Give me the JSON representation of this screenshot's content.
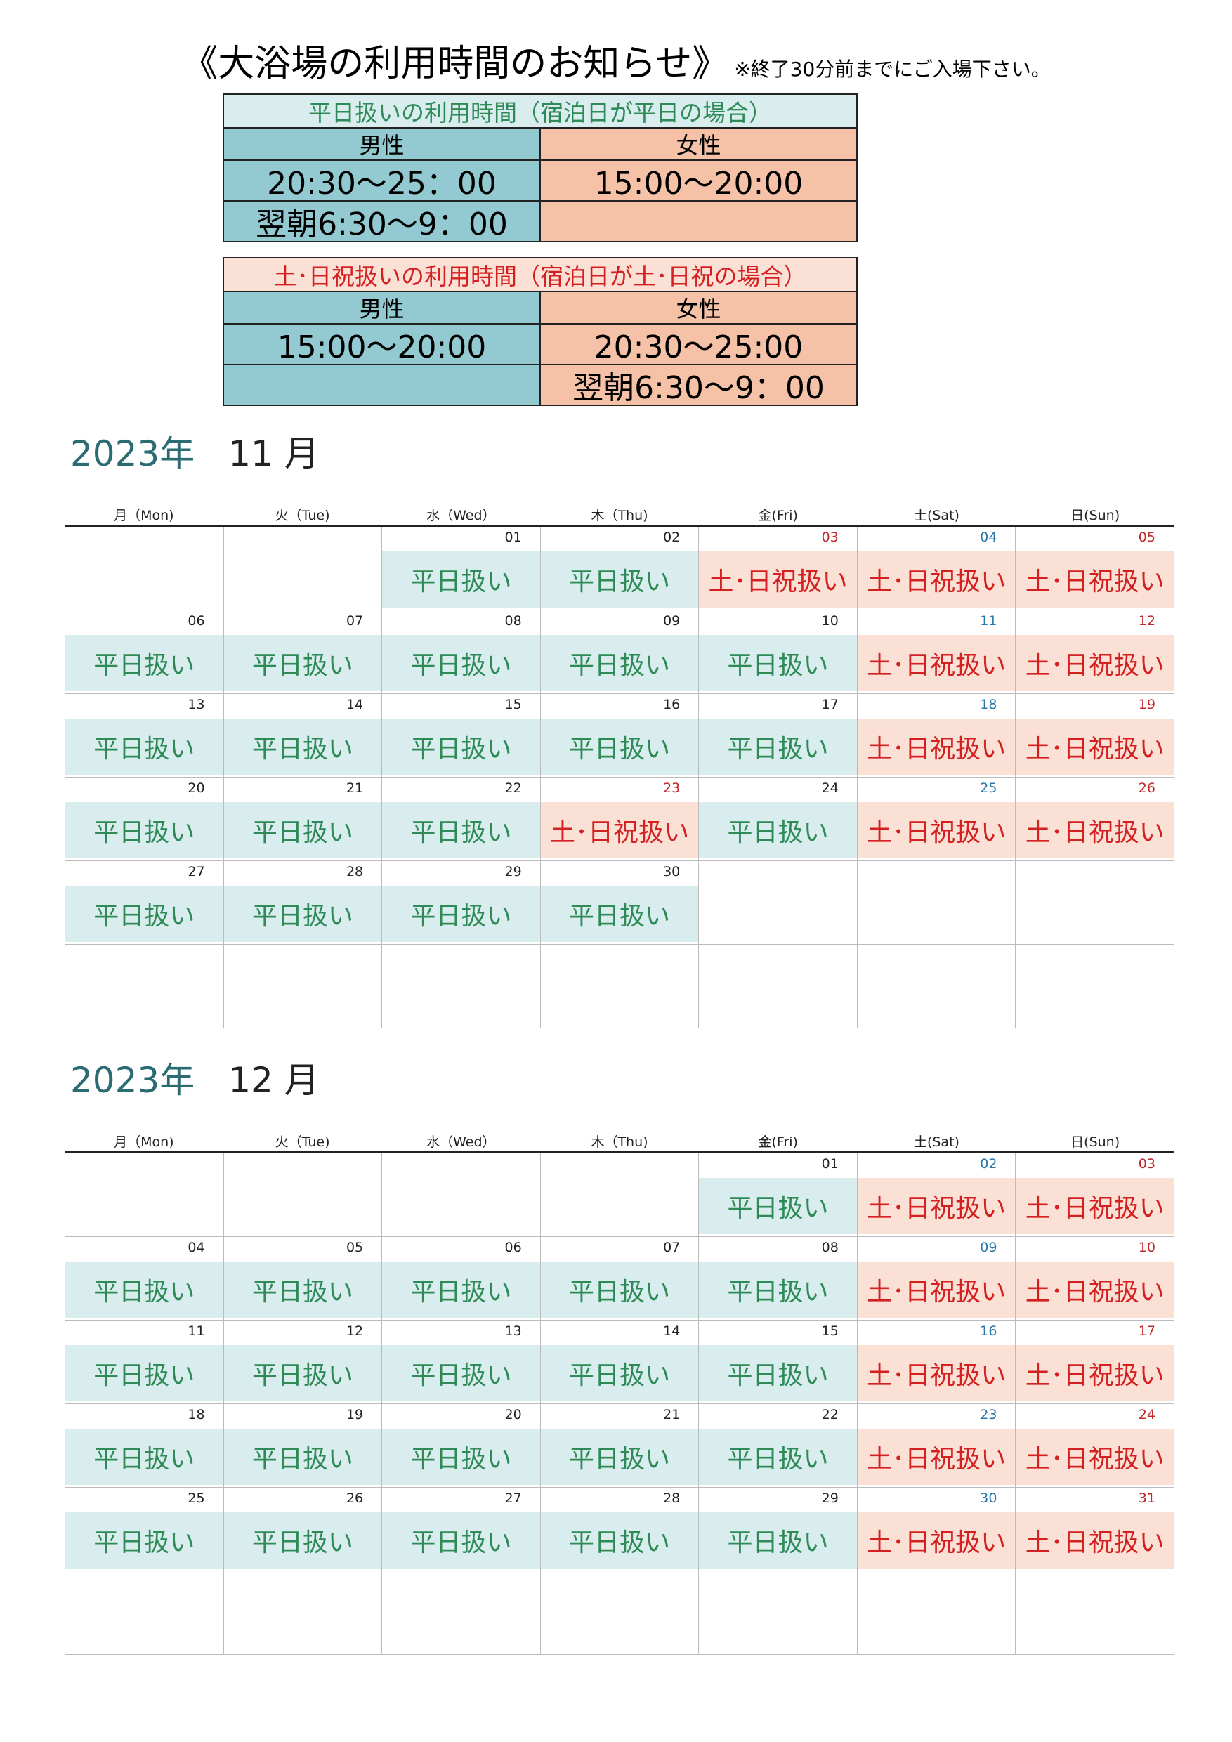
{
  "title": {
    "main": "《大浴場の利用時間のお知らせ》",
    "note": "※終了30分前までにご入場下さい。"
  },
  "weekday_schedule": {
    "header": "平日扱いの利用時間（宿泊日が平日の場合）",
    "male_label": "男性",
    "female_label": "女性",
    "male_time_1": "20:30～25：00",
    "male_time_2": "翌朝6:30～9：00",
    "female_time_1": "15:00～20:00",
    "female_time_2": ""
  },
  "weekend_schedule": {
    "header": "土･日祝扱いの利用時間（宿泊日が土･日祝の場合）",
    "male_label": "男性",
    "female_label": "女性",
    "male_time_1": "15:00～20:00",
    "male_time_2": "",
    "female_time_1": "20:30～25:00",
    "female_time_2": "翌朝6:30～9：00"
  },
  "colors": {
    "weekday_bg": "#d9ecee",
    "weekday_text": "#2e8b57",
    "weekend_bg": "#fbe0d6",
    "weekend_text": "#d42020",
    "male_bg": "#93c9d0",
    "female_bg": "#f5c2a7",
    "saturday_number": "#2878a8",
    "sunday_holiday_number": "#c0282a",
    "year_heading": "#2b6b72"
  },
  "weekday_headers": [
    "月（Mon)",
    "火（Tue)",
    "水（Wed）",
    "木（Thu)",
    "金(Fri)",
    "土(Sat)",
    "日(Sun)"
  ],
  "labels": {
    "weekday": "平日扱い",
    "weekend": "土･日祝扱い"
  },
  "november": {
    "year": "2023年",
    "month": "11 月",
    "days": [
      null,
      null,
      {
        "num": "01",
        "kind": "wk"
      },
      {
        "num": "02",
        "kind": "wk"
      },
      {
        "num": "03",
        "kind": "we",
        "hol": true
      },
      {
        "num": "04",
        "kind": "we"
      },
      {
        "num": "05",
        "kind": "we"
      },
      {
        "num": "06",
        "kind": "wk"
      },
      {
        "num": "07",
        "kind": "wk"
      },
      {
        "num": "08",
        "kind": "wk"
      },
      {
        "num": "09",
        "kind": "wk"
      },
      {
        "num": "10",
        "kind": "wk"
      },
      {
        "num": "11",
        "kind": "we"
      },
      {
        "num": "12",
        "kind": "we"
      },
      {
        "num": "13",
        "kind": "wk"
      },
      {
        "num": "14",
        "kind": "wk"
      },
      {
        "num": "15",
        "kind": "wk"
      },
      {
        "num": "16",
        "kind": "wk"
      },
      {
        "num": "17",
        "kind": "wk"
      },
      {
        "num": "18",
        "kind": "we"
      },
      {
        "num": "19",
        "kind": "we"
      },
      {
        "num": "20",
        "kind": "wk"
      },
      {
        "num": "21",
        "kind": "wk"
      },
      {
        "num": "22",
        "kind": "wk"
      },
      {
        "num": "23",
        "kind": "we",
        "hol": true
      },
      {
        "num": "24",
        "kind": "wk"
      },
      {
        "num": "25",
        "kind": "we"
      },
      {
        "num": "26",
        "kind": "we"
      },
      {
        "num": "27",
        "kind": "wk"
      },
      {
        "num": "28",
        "kind": "wk"
      },
      {
        "num": "29",
        "kind": "wk"
      },
      {
        "num": "30",
        "kind": "wk"
      },
      null,
      null,
      null,
      null,
      null,
      null,
      null,
      null,
      null,
      null
    ]
  },
  "december": {
    "year": "2023年",
    "month": "12 月",
    "days": [
      null,
      null,
      null,
      null,
      {
        "num": "01",
        "kind": "wk"
      },
      {
        "num": "02",
        "kind": "we"
      },
      {
        "num": "03",
        "kind": "we"
      },
      {
        "num": "04",
        "kind": "wk"
      },
      {
        "num": "05",
        "kind": "wk"
      },
      {
        "num": "06",
        "kind": "wk"
      },
      {
        "num": "07",
        "kind": "wk"
      },
      {
        "num": "08",
        "kind": "wk"
      },
      {
        "num": "09",
        "kind": "we"
      },
      {
        "num": "10",
        "kind": "we"
      },
      {
        "num": "11",
        "kind": "wk"
      },
      {
        "num": "12",
        "kind": "wk"
      },
      {
        "num": "13",
        "kind": "wk"
      },
      {
        "num": "14",
        "kind": "wk"
      },
      {
        "num": "15",
        "kind": "wk"
      },
      {
        "num": "16",
        "kind": "we"
      },
      {
        "num": "17",
        "kind": "we"
      },
      {
        "num": "18",
        "kind": "wk"
      },
      {
        "num": "19",
        "kind": "wk"
      },
      {
        "num": "20",
        "kind": "wk"
      },
      {
        "num": "21",
        "kind": "wk"
      },
      {
        "num": "22",
        "kind": "wk"
      },
      {
        "num": "23",
        "kind": "we"
      },
      {
        "num": "24",
        "kind": "we"
      },
      {
        "num": "25",
        "kind": "wk"
      },
      {
        "num": "26",
        "kind": "wk"
      },
      {
        "num": "27",
        "kind": "wk"
      },
      {
        "num": "28",
        "kind": "wk"
      },
      {
        "num": "29",
        "kind": "wk"
      },
      {
        "num": "30",
        "kind": "we"
      },
      {
        "num": "31",
        "kind": "we"
      },
      null,
      null,
      null,
      null,
      null,
      null,
      null
    ]
  }
}
